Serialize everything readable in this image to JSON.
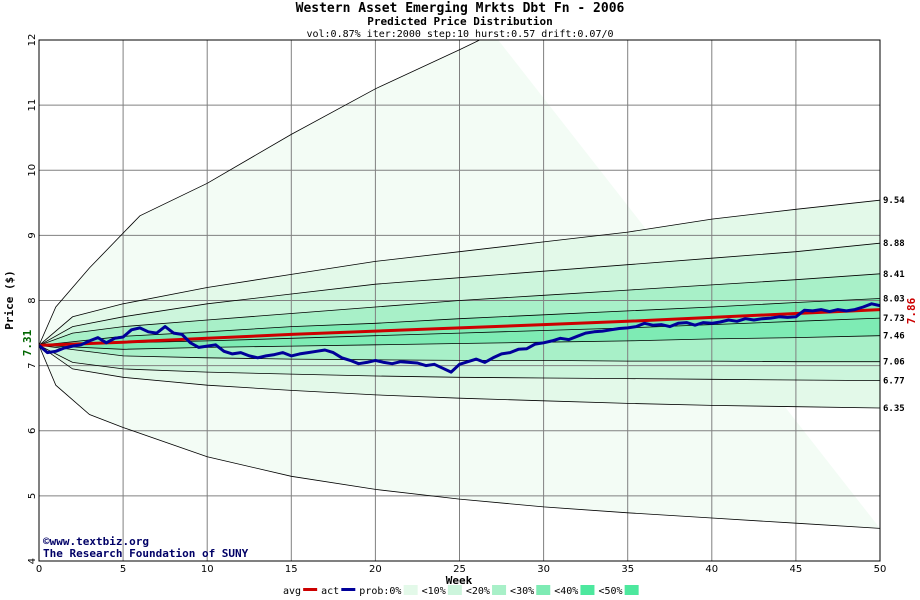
{
  "chart_data": {
    "type": "line",
    "title": "Western Asset Emerging Mrkts Dbt Fn - 2006",
    "subtitle": "Predicted Price Distribution",
    "params": "vol:0.87% iter:2000 step:10 hurst:0.57 drift:0.07/0",
    "xlabel": "Week",
    "ylabel": "Price ($)",
    "xlim": [
      0,
      50
    ],
    "ylim": [
      4,
      12
    ],
    "x_ticks": [
      0,
      5,
      10,
      15,
      20,
      25,
      30,
      35,
      40,
      45,
      50
    ],
    "y_ticks": [
      4,
      5,
      6,
      7,
      8,
      9,
      10,
      11,
      12
    ],
    "grid": true,
    "start_label": "7.31",
    "end_label": "7.86",
    "colors": {
      "background": "#ffffff",
      "band_0": "#f3fcf5",
      "band_10": "#e3f9e9",
      "band_20": "#ccf5dc",
      "band_30": "#a8f0c8",
      "band_40": "#7eebb4",
      "band_50": "#4de89e",
      "avg": "#cc0000",
      "actual": "#000099",
      "grid": "#808080"
    },
    "percentile_curves": [
      {
        "end_label": "",
        "values": [
          [
            0,
            7.31
          ],
          [
            1,
            7.9
          ],
          [
            3,
            8.5
          ],
          [
            6,
            9.3
          ],
          [
            10,
            9.8
          ],
          [
            15,
            10.55
          ],
          [
            20,
            11.25
          ],
          [
            25,
            11.85
          ],
          [
            27,
            12.1
          ]
        ]
      },
      {
        "end_label": "9.54",
        "values": [
          [
            0,
            7.31
          ],
          [
            2,
            7.75
          ],
          [
            5,
            7.95
          ],
          [
            10,
            8.2
          ],
          [
            15,
            8.4
          ],
          [
            20,
            8.6
          ],
          [
            25,
            8.75
          ],
          [
            30,
            8.9
          ],
          [
            35,
            9.05
          ],
          [
            40,
            9.25
          ],
          [
            45,
            9.4
          ],
          [
            50,
            9.54
          ]
        ]
      },
      {
        "end_label": "8.88",
        "values": [
          [
            0,
            7.31
          ],
          [
            2,
            7.6
          ],
          [
            5,
            7.75
          ],
          [
            10,
            7.95
          ],
          [
            15,
            8.1
          ],
          [
            20,
            8.25
          ],
          [
            25,
            8.35
          ],
          [
            30,
            8.45
          ],
          [
            35,
            8.55
          ],
          [
            40,
            8.65
          ],
          [
            45,
            8.75
          ],
          [
            50,
            8.88
          ]
        ]
      },
      {
        "end_label": "8.41",
        "values": [
          [
            0,
            7.31
          ],
          [
            2,
            7.5
          ],
          [
            5,
            7.6
          ],
          [
            10,
            7.7
          ],
          [
            15,
            7.8
          ],
          [
            20,
            7.9
          ],
          [
            25,
            8.0
          ],
          [
            30,
            8.08
          ],
          [
            35,
            8.16
          ],
          [
            40,
            8.24
          ],
          [
            45,
            8.32
          ],
          [
            50,
            8.41
          ]
        ]
      },
      {
        "end_label": "8.03",
        "values": [
          [
            0,
            7.31
          ],
          [
            5,
            7.45
          ],
          [
            10,
            7.52
          ],
          [
            15,
            7.6
          ],
          [
            20,
            7.65
          ],
          [
            25,
            7.72
          ],
          [
            30,
            7.78
          ],
          [
            35,
            7.84
          ],
          [
            40,
            7.9
          ],
          [
            45,
            7.97
          ],
          [
            50,
            8.03
          ]
        ]
      },
      {
        "end_label": "7.73",
        "values": [
          [
            0,
            7.31
          ],
          [
            5,
            7.35
          ],
          [
            10,
            7.38
          ],
          [
            15,
            7.42
          ],
          [
            20,
            7.46
          ],
          [
            25,
            7.5
          ],
          [
            30,
            7.54
          ],
          [
            35,
            7.58
          ],
          [
            40,
            7.63
          ],
          [
            45,
            7.68
          ],
          [
            50,
            7.73
          ]
        ]
      },
      {
        "end_label": "7.46",
        "values": [
          [
            0,
            7.31
          ],
          [
            5,
            7.25
          ],
          [
            10,
            7.28
          ],
          [
            15,
            7.3
          ],
          [
            20,
            7.32
          ],
          [
            25,
            7.34
          ],
          [
            30,
            7.36
          ],
          [
            35,
            7.38
          ],
          [
            40,
            7.41
          ],
          [
            45,
            7.43
          ],
          [
            50,
            7.46
          ]
        ]
      },
      {
        "end_label": "7.06",
        "values": [
          [
            0,
            7.31
          ],
          [
            5,
            7.15
          ],
          [
            10,
            7.12
          ],
          [
            15,
            7.1
          ],
          [
            20,
            7.09
          ],
          [
            25,
            7.08
          ],
          [
            30,
            7.08
          ],
          [
            35,
            7.07
          ],
          [
            40,
            7.07
          ],
          [
            45,
            7.06
          ],
          [
            50,
            7.06
          ]
        ]
      },
      {
        "end_label": "6.77",
        "values": [
          [
            0,
            7.31
          ],
          [
            2,
            7.05
          ],
          [
            5,
            6.95
          ],
          [
            10,
            6.9
          ],
          [
            15,
            6.87
          ],
          [
            20,
            6.84
          ],
          [
            25,
            6.82
          ],
          [
            30,
            6.81
          ],
          [
            35,
            6.8
          ],
          [
            40,
            6.79
          ],
          [
            45,
            6.78
          ],
          [
            50,
            6.77
          ]
        ]
      },
      {
        "end_label": "6.35",
        "values": [
          [
            0,
            7.31
          ],
          [
            2,
            6.95
          ],
          [
            5,
            6.82
          ],
          [
            10,
            6.7
          ],
          [
            15,
            6.62
          ],
          [
            20,
            6.55
          ],
          [
            25,
            6.5
          ],
          [
            30,
            6.46
          ],
          [
            35,
            6.42
          ],
          [
            40,
            6.39
          ],
          [
            45,
            6.37
          ],
          [
            50,
            6.35
          ]
        ]
      },
      {
        "end_label": "",
        "values": [
          [
            0,
            7.31
          ],
          [
            1,
            6.7
          ],
          [
            3,
            6.25
          ],
          [
            5,
            6.05
          ],
          [
            10,
            5.6
          ],
          [
            15,
            5.3
          ],
          [
            20,
            5.1
          ],
          [
            25,
            4.95
          ],
          [
            30,
            4.83
          ],
          [
            35,
            4.74
          ],
          [
            40,
            4.66
          ],
          [
            45,
            4.58
          ],
          [
            50,
            4.5
          ]
        ]
      }
    ],
    "band_fills": [
      {
        "lower": 0,
        "upper": 10,
        "color": "band_0"
      },
      {
        "lower": 1,
        "upper": 9,
        "color": "band_10"
      },
      {
        "lower": 2,
        "upper": 8,
        "color": "band_20"
      },
      {
        "lower": 3,
        "upper": 7,
        "color": "band_30"
      },
      {
        "lower": 4,
        "upper": 6,
        "color": "band_40"
      }
    ],
    "series": [
      {
        "name": "avg",
        "color": "avg",
        "values": [
          [
            0,
            7.31
          ],
          [
            5,
            7.36
          ],
          [
            10,
            7.42
          ],
          [
            15,
            7.48
          ],
          [
            20,
            7.53
          ],
          [
            25,
            7.58
          ],
          [
            30,
            7.63
          ],
          [
            35,
            7.68
          ],
          [
            40,
            7.74
          ],
          [
            45,
            7.8
          ],
          [
            50,
            7.86
          ]
        ]
      },
      {
        "name": "act",
        "color": "actual",
        "values": [
          [
            0,
            7.31
          ],
          [
            0.5,
            7.2
          ],
          [
            1,
            7.22
          ],
          [
            1.5,
            7.27
          ],
          [
            2,
            7.3
          ],
          [
            2.5,
            7.32
          ],
          [
            3,
            7.38
          ],
          [
            3.5,
            7.43
          ],
          [
            4,
            7.35
          ],
          [
            4.5,
            7.42
          ],
          [
            5,
            7.44
          ],
          [
            5.5,
            7.55
          ],
          [
            6,
            7.58
          ],
          [
            6.5,
            7.52
          ],
          [
            7,
            7.5
          ],
          [
            7.5,
            7.6
          ],
          [
            8,
            7.5
          ],
          [
            8.5,
            7.48
          ],
          [
            9,
            7.35
          ],
          [
            9.5,
            7.28
          ],
          [
            10,
            7.3
          ],
          [
            10.5,
            7.32
          ],
          [
            11,
            7.22
          ],
          [
            11.5,
            7.18
          ],
          [
            12,
            7.2
          ],
          [
            12.5,
            7.15
          ],
          [
            13,
            7.12
          ],
          [
            13.5,
            7.15
          ],
          [
            14,
            7.17
          ],
          [
            14.5,
            7.2
          ],
          [
            15,
            7.15
          ],
          [
            15.5,
            7.18
          ],
          [
            16,
            7.2
          ],
          [
            16.5,
            7.22
          ],
          [
            17,
            7.24
          ],
          [
            17.5,
            7.2
          ],
          [
            18,
            7.12
          ],
          [
            18.5,
            7.08
          ],
          [
            19,
            7.03
          ],
          [
            19.5,
            7.05
          ],
          [
            20,
            7.08
          ],
          [
            20.5,
            7.05
          ],
          [
            21,
            7.03
          ],
          [
            21.5,
            7.06
          ],
          [
            22,
            7.05
          ],
          [
            22.5,
            7.04
          ],
          [
            23,
            7.0
          ],
          [
            23.5,
            7.02
          ],
          [
            24,
            6.96
          ],
          [
            24.5,
            6.9
          ],
          [
            25,
            7.02
          ],
          [
            25.5,
            7.06
          ],
          [
            26,
            7.1
          ],
          [
            26.5,
            7.05
          ],
          [
            27,
            7.12
          ],
          [
            27.5,
            7.18
          ],
          [
            28,
            7.2
          ],
          [
            28.5,
            7.25
          ],
          [
            29,
            7.26
          ],
          [
            29.5,
            7.33
          ],
          [
            30,
            7.35
          ],
          [
            30.5,
            7.38
          ],
          [
            31,
            7.42
          ],
          [
            31.5,
            7.4
          ],
          [
            32,
            7.45
          ],
          [
            32.5,
            7.5
          ],
          [
            33,
            7.52
          ],
          [
            33.5,
            7.53
          ],
          [
            34,
            7.55
          ],
          [
            34.5,
            7.57
          ],
          [
            35,
            7.58
          ],
          [
            35.5,
            7.6
          ],
          [
            36,
            7.65
          ],
          [
            36.5,
            7.62
          ],
          [
            37,
            7.63
          ],
          [
            37.5,
            7.6
          ],
          [
            38,
            7.65
          ],
          [
            38.5,
            7.66
          ],
          [
            39,
            7.62
          ],
          [
            39.5,
            7.66
          ],
          [
            40,
            7.65
          ],
          [
            40.5,
            7.67
          ],
          [
            41,
            7.7
          ],
          [
            41.5,
            7.68
          ],
          [
            42,
            7.72
          ],
          [
            42.5,
            7.7
          ],
          [
            43,
            7.72
          ],
          [
            43.5,
            7.73
          ],
          [
            44,
            7.75
          ],
          [
            44.5,
            7.74
          ],
          [
            45,
            7.75
          ],
          [
            45.5,
            7.85
          ],
          [
            46,
            7.84
          ],
          [
            46.5,
            7.86
          ],
          [
            47,
            7.83
          ],
          [
            47.5,
            7.86
          ],
          [
            48,
            7.84
          ],
          [
            48.5,
            7.86
          ],
          [
            49,
            7.9
          ],
          [
            49.5,
            7.95
          ],
          [
            50,
            7.92
          ]
        ]
      }
    ],
    "credits": [
      "©www.textbiz.org",
      "The Research Foundation of SUNY"
    ],
    "legend": [
      {
        "label": "avg",
        "type": "line",
        "color": "avg"
      },
      {
        "label": "act",
        "type": "line",
        "color": "actual"
      },
      {
        "label": "prob:0%",
        "type": "swatch",
        "color": "band_0"
      },
      {
        "label": "<10%",
        "type": "swatch",
        "color": "band_10"
      },
      {
        "label": "<20%",
        "type": "swatch",
        "color": "band_20"
      },
      {
        "label": "<30%",
        "type": "swatch",
        "color": "band_30"
      },
      {
        "label": "<40%",
        "type": "swatch",
        "color": "band_40"
      },
      {
        "label": "<50%",
        "type": "swatch",
        "color": "band_50"
      }
    ]
  }
}
